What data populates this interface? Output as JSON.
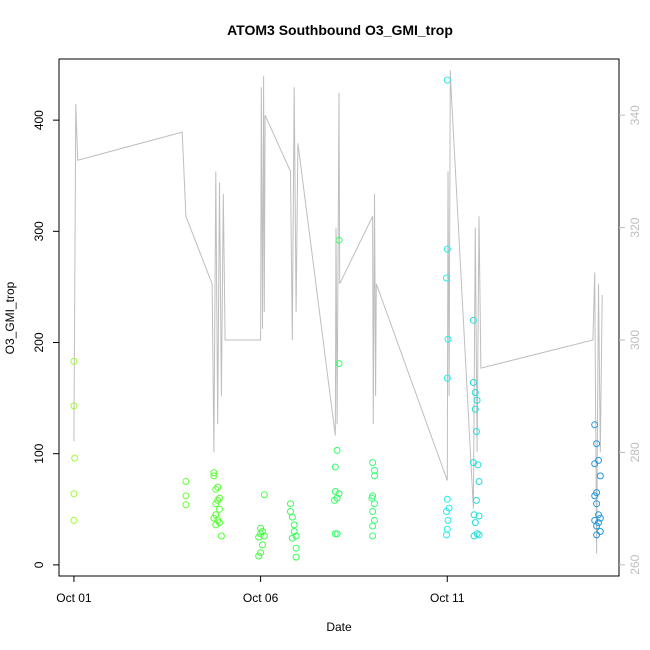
{
  "chart_data": {
    "type": "scatter",
    "title": "ATOM3 Southbound O3_GMI_trop",
    "xlabel": "Date",
    "ylabel": "O3_GMI_trop",
    "x_ticks": [
      "Oct 01",
      "Oct 06",
      "Oct 11"
    ],
    "x_tick_days": [
      1,
      6,
      11
    ],
    "xlim": [
      0.6,
      15.6
    ],
    "ylim": [
      -10,
      455
    ],
    "y_ticks": [
      0,
      100,
      200,
      300,
      400
    ],
    "y2_ticks": [
      260,
      280,
      300,
      320,
      340
    ],
    "y2lim": [
      258,
      350
    ],
    "grid": false,
    "legend": "none",
    "colors": {
      "series_line": "#bebebe",
      "right_axis": "#bebebe",
      "points_early": "#66ff33",
      "points_mid": "#33ff66",
      "points_cyan": "#00e5e5",
      "points_blue": "#1f9ae5"
    },
    "series": [
      {
        "type": "points",
        "values": [
          {
            "x": 1.0,
            "y": 183,
            "c": "#99ff33"
          },
          {
            "x": 1.0,
            "y": 143,
            "c": "#99ff33"
          },
          {
            "x": 1.02,
            "y": 96,
            "c": "#99ff33"
          },
          {
            "x": 1.0,
            "y": 64,
            "c": "#99ff33"
          },
          {
            "x": 1.0,
            "y": 40,
            "c": "#99ff33"
          },
          {
            "x": 4.0,
            "y": 75,
            "c": "#66ff33"
          },
          {
            "x": 4.0,
            "y": 62,
            "c": "#66ff33"
          },
          {
            "x": 4.0,
            "y": 54,
            "c": "#66ff33"
          },
          {
            "x": 4.75,
            "y": 83,
            "c": "#55ff33"
          },
          {
            "x": 4.75,
            "y": 80,
            "c": "#55ff33"
          },
          {
            "x": 4.85,
            "y": 70,
            "c": "#55ff33"
          },
          {
            "x": 4.8,
            "y": 68,
            "c": "#55ff33"
          },
          {
            "x": 4.9,
            "y": 60,
            "c": "#55ff33"
          },
          {
            "x": 4.85,
            "y": 58,
            "c": "#55ff33"
          },
          {
            "x": 4.8,
            "y": 55,
            "c": "#55ff33"
          },
          {
            "x": 4.9,
            "y": 50,
            "c": "#55ff33"
          },
          {
            "x": 4.8,
            "y": 45,
            "c": "#55ff33"
          },
          {
            "x": 4.75,
            "y": 42,
            "c": "#55ff33"
          },
          {
            "x": 4.85,
            "y": 40,
            "c": "#55ff33"
          },
          {
            "x": 4.9,
            "y": 38,
            "c": "#55ff33"
          },
          {
            "x": 4.8,
            "y": 36,
            "c": "#55ff33"
          },
          {
            "x": 4.95,
            "y": 26,
            "c": "#55ff33"
          },
          {
            "x": 6.0,
            "y": 33,
            "c": "#44ff44"
          },
          {
            "x": 6.05,
            "y": 30,
            "c": "#44ff44"
          },
          {
            "x": 6.0,
            "y": 28,
            "c": "#44ff44"
          },
          {
            "x": 6.1,
            "y": 26,
            "c": "#44ff44"
          },
          {
            "x": 5.95,
            "y": 25,
            "c": "#44ff44"
          },
          {
            "x": 6.05,
            "y": 18,
            "c": "#44ff44"
          },
          {
            "x": 6.0,
            "y": 11,
            "c": "#44ff44"
          },
          {
            "x": 5.95,
            "y": 8,
            "c": "#44ff44"
          },
          {
            "x": 6.1,
            "y": 63,
            "c": "#44ff44"
          },
          {
            "x": 6.8,
            "y": 55,
            "c": "#33ff55"
          },
          {
            "x": 6.8,
            "y": 48,
            "c": "#33ff55"
          },
          {
            "x": 6.85,
            "y": 43,
            "c": "#33ff55"
          },
          {
            "x": 6.9,
            "y": 36,
            "c": "#33ff55"
          },
          {
            "x": 6.9,
            "y": 30,
            "c": "#33ff55"
          },
          {
            "x": 6.95,
            "y": 26,
            "c": "#33ff55"
          },
          {
            "x": 6.85,
            "y": 24,
            "c": "#33ff55"
          },
          {
            "x": 6.95,
            "y": 15,
            "c": "#33ff55"
          },
          {
            "x": 6.95,
            "y": 7,
            "c": "#33ff55"
          },
          {
            "x": 8.0,
            "y": 88,
            "c": "#33ff66"
          },
          {
            "x": 8.05,
            "y": 103,
            "c": "#33ff66"
          },
          {
            "x": 8.0,
            "y": 66,
            "c": "#33ff66"
          },
          {
            "x": 8.1,
            "y": 64,
            "c": "#33ff66"
          },
          {
            "x": 8.05,
            "y": 60,
            "c": "#33ff66"
          },
          {
            "x": 7.98,
            "y": 58,
            "c": "#33ff66"
          },
          {
            "x": 8.0,
            "y": 28,
            "c": "#33ff66"
          },
          {
            "x": 8.05,
            "y": 28,
            "c": "#33ff66"
          },
          {
            "x": 8.1,
            "y": 181,
            "c": "#33ff66"
          },
          {
            "x": 8.1,
            "y": 292,
            "c": "#33ff66"
          },
          {
            "x": 9.0,
            "y": 92,
            "c": "#33ff77"
          },
          {
            "x": 9.05,
            "y": 85,
            "c": "#33ff77"
          },
          {
            "x": 9.05,
            "y": 80,
            "c": "#33ff77"
          },
          {
            "x": 9.0,
            "y": 62,
            "c": "#33ff77"
          },
          {
            "x": 8.98,
            "y": 60,
            "c": "#33ff77"
          },
          {
            "x": 9.05,
            "y": 55,
            "c": "#33ff77"
          },
          {
            "x": 9.0,
            "y": 48,
            "c": "#33ff77"
          },
          {
            "x": 9.05,
            "y": 40,
            "c": "#33ff77"
          },
          {
            "x": 9.0,
            "y": 35,
            "c": "#33ff77"
          },
          {
            "x": 9.0,
            "y": 26,
            "c": "#33ff77"
          },
          {
            "x": 11.0,
            "y": 436,
            "c": "#22eeee"
          },
          {
            "x": 11.0,
            "y": 284,
            "c": "#22eeee"
          },
          {
            "x": 10.98,
            "y": 258,
            "c": "#22eeee"
          },
          {
            "x": 11.02,
            "y": 203,
            "c": "#22eeee"
          },
          {
            "x": 11.0,
            "y": 168,
            "c": "#22eeee"
          },
          {
            "x": 11.0,
            "y": 59,
            "c": "#22eeee"
          },
          {
            "x": 11.05,
            "y": 51,
            "c": "#22eeee"
          },
          {
            "x": 10.98,
            "y": 48,
            "c": "#22eeee"
          },
          {
            "x": 11.02,
            "y": 40,
            "c": "#22eeee"
          },
          {
            "x": 11.0,
            "y": 32,
            "c": "#22eeee"
          },
          {
            "x": 10.98,
            "y": 27,
            "c": "#22eeee"
          },
          {
            "x": 11.7,
            "y": 220,
            "c": "#22dddd"
          },
          {
            "x": 11.7,
            "y": 164,
            "c": "#22dddd"
          },
          {
            "x": 11.75,
            "y": 155,
            "c": "#22dddd"
          },
          {
            "x": 11.8,
            "y": 148,
            "c": "#22dddd"
          },
          {
            "x": 11.75,
            "y": 140,
            "c": "#22dddd"
          },
          {
            "x": 11.78,
            "y": 120,
            "c": "#22dddd"
          },
          {
            "x": 11.7,
            "y": 92,
            "c": "#22dddd"
          },
          {
            "x": 11.82,
            "y": 90,
            "c": "#22dddd"
          },
          {
            "x": 11.85,
            "y": 75,
            "c": "#22dddd"
          },
          {
            "x": 11.78,
            "y": 58,
            "c": "#22dddd"
          },
          {
            "x": 11.72,
            "y": 45,
            "c": "#22dddd"
          },
          {
            "x": 11.85,
            "y": 44,
            "c": "#22dddd"
          },
          {
            "x": 11.75,
            "y": 38,
            "c": "#22dddd"
          },
          {
            "x": 11.8,
            "y": 28,
            "c": "#22dddd"
          },
          {
            "x": 11.72,
            "y": 26,
            "c": "#22dddd"
          },
          {
            "x": 11.85,
            "y": 27,
            "c": "#22dddd"
          },
          {
            "x": 14.95,
            "y": 126,
            "c": "#2299dd"
          },
          {
            "x": 15.0,
            "y": 109,
            "c": "#2299dd"
          },
          {
            "x": 15.05,
            "y": 94,
            "c": "#2299dd"
          },
          {
            "x": 14.95,
            "y": 91,
            "c": "#2299dd"
          },
          {
            "x": 15.1,
            "y": 80,
            "c": "#2299dd"
          },
          {
            "x": 15.0,
            "y": 65,
            "c": "#2299dd"
          },
          {
            "x": 14.95,
            "y": 62,
            "c": "#2299dd"
          },
          {
            "x": 15.0,
            "y": 55,
            "c": "#2299dd"
          },
          {
            "x": 15.05,
            "y": 45,
            "c": "#2299dd"
          },
          {
            "x": 15.1,
            "y": 42,
            "c": "#2299dd"
          },
          {
            "x": 14.95,
            "y": 40,
            "c": "#2299dd"
          },
          {
            "x": 15.05,
            "y": 38,
            "c": "#2299dd"
          },
          {
            "x": 15.0,
            "y": 35,
            "c": "#2299dd"
          },
          {
            "x": 15.1,
            "y": 30,
            "c": "#2299dd"
          },
          {
            "x": 15.0,
            "y": 27,
            "c": "#2299dd"
          }
        ]
      },
      {
        "type": "line",
        "axis": "right",
        "color": "#bebebe",
        "values": [
          {
            "x": 1.0,
            "y": 282
          },
          {
            "x": 1.05,
            "y": 342
          },
          {
            "x": 1.08,
            "y": 336
          },
          {
            "x": 1.1,
            "y": 332
          },
          {
            "x": 3.9,
            "y": 337
          },
          {
            "x": 4.0,
            "y": 322
          },
          {
            "x": 4.7,
            "y": 310
          },
          {
            "x": 4.75,
            "y": 280
          },
          {
            "x": 4.8,
            "y": 330
          },
          {
            "x": 4.85,
            "y": 285
          },
          {
            "x": 4.9,
            "y": 328
          },
          {
            "x": 4.95,
            "y": 290
          },
          {
            "x": 5.0,
            "y": 326
          },
          {
            "x": 5.05,
            "y": 300
          },
          {
            "x": 6.0,
            "y": 300
          },
          {
            "x": 6.02,
            "y": 345
          },
          {
            "x": 6.05,
            "y": 302
          },
          {
            "x": 6.08,
            "y": 347
          },
          {
            "x": 6.1,
            "y": 305
          },
          {
            "x": 6.12,
            "y": 340
          },
          {
            "x": 6.8,
            "y": 330
          },
          {
            "x": 6.85,
            "y": 300
          },
          {
            "x": 6.9,
            "y": 345
          },
          {
            "x": 6.95,
            "y": 305
          },
          {
            "x": 7.0,
            "y": 335
          },
          {
            "x": 8.0,
            "y": 283
          },
          {
            "x": 8.02,
            "y": 320
          },
          {
            "x": 8.05,
            "y": 285
          },
          {
            "x": 8.1,
            "y": 344
          },
          {
            "x": 8.12,
            "y": 310
          },
          {
            "x": 9.0,
            "y": 322
          },
          {
            "x": 9.02,
            "y": 285
          },
          {
            "x": 9.05,
            "y": 326
          },
          {
            "x": 9.08,
            "y": 290
          },
          {
            "x": 9.1,
            "y": 310
          },
          {
            "x": 11.0,
            "y": 275
          },
          {
            "x": 11.02,
            "y": 330
          },
          {
            "x": 11.05,
            "y": 290
          },
          {
            "x": 11.08,
            "y": 348
          },
          {
            "x": 11.1,
            "y": 345
          },
          {
            "x": 11.7,
            "y": 270
          },
          {
            "x": 11.75,
            "y": 320
          },
          {
            "x": 11.8,
            "y": 280
          },
          {
            "x": 11.85,
            "y": 322
          },
          {
            "x": 11.9,
            "y": 295
          },
          {
            "x": 14.9,
            "y": 300
          },
          {
            "x": 14.95,
            "y": 312
          },
          {
            "x": 15.0,
            "y": 262
          },
          {
            "x": 15.05,
            "y": 310
          },
          {
            "x": 15.1,
            "y": 280
          },
          {
            "x": 15.15,
            "y": 308
          }
        ]
      }
    ]
  }
}
